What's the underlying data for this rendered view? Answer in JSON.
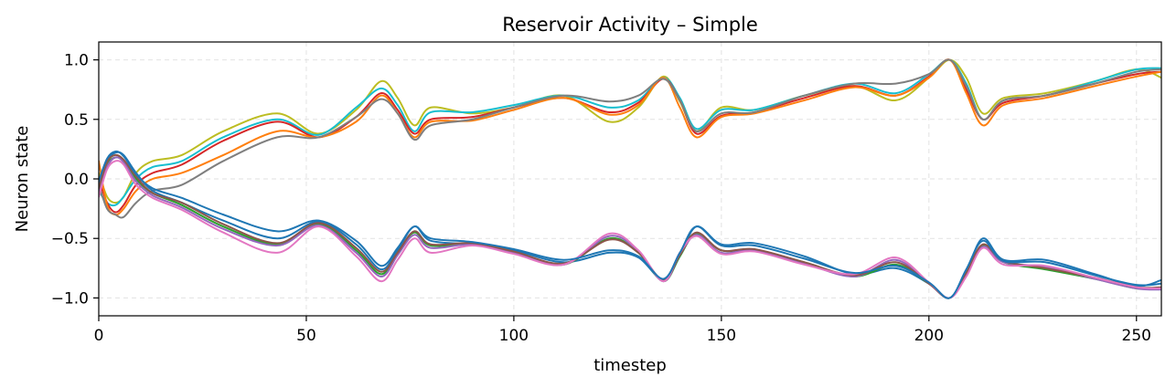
{
  "chart_data": {
    "type": "line",
    "title": "Reservoir Activity – Simple",
    "xlabel": "timestep",
    "ylabel": "Neuron state",
    "xlim": [
      0,
      256
    ],
    "ylim": [
      -1.15,
      1.15
    ],
    "x_ticks": [
      0,
      50,
      100,
      150,
      200,
      250
    ],
    "x_tick_labels": [
      "0",
      "50",
      "100",
      "150",
      "200",
      "250"
    ],
    "y_ticks": [
      1.0,
      0.5,
      0.0,
      -0.5,
      -1.0
    ],
    "y_tick_labels": [
      "1.0",
      "0.5",
      "0.0",
      "−0.5",
      "−1.0"
    ],
    "grid": true,
    "legend": "none",
    "x": [
      0,
      2,
      4,
      6,
      9,
      13,
      20,
      30,
      43,
      53,
      62,
      68,
      72,
      76,
      80,
      90,
      100,
      112,
      123,
      130,
      136,
      140,
      144,
      150,
      158,
      170,
      182,
      192,
      200,
      205,
      209,
      213,
      218,
      228,
      240,
      250,
      256
    ],
    "series": [
      {
        "color": "#bcbd22",
        "values": [
          0.05,
          -0.15,
          -0.2,
          -0.15,
          0.05,
          0.15,
          0.2,
          0.4,
          0.55,
          0.38,
          0.58,
          0.82,
          0.68,
          0.45,
          0.6,
          0.55,
          0.6,
          0.7,
          0.48,
          0.6,
          0.86,
          0.65,
          0.4,
          0.6,
          0.58,
          0.7,
          0.78,
          0.66,
          0.85,
          1.0,
          0.85,
          0.55,
          0.68,
          0.72,
          0.82,
          0.92,
          0.85
        ]
      },
      {
        "color": "#17becf",
        "values": [
          -0.1,
          -0.2,
          -0.22,
          -0.15,
          0.0,
          0.1,
          0.15,
          0.35,
          0.5,
          0.37,
          0.6,
          0.76,
          0.62,
          0.4,
          0.56,
          0.56,
          0.62,
          0.7,
          0.6,
          0.66,
          0.85,
          0.68,
          0.42,
          0.58,
          0.58,
          0.7,
          0.8,
          0.72,
          0.88,
          1.0,
          0.8,
          0.5,
          0.66,
          0.7,
          0.82,
          0.92,
          0.93
        ]
      },
      {
        "color": "#d62728",
        "values": [
          0.0,
          -0.2,
          -0.28,
          -0.22,
          -0.05,
          0.05,
          0.12,
          0.32,
          0.48,
          0.35,
          0.52,
          0.72,
          0.58,
          0.38,
          0.5,
          0.52,
          0.6,
          0.68,
          0.56,
          0.64,
          0.84,
          0.66,
          0.38,
          0.53,
          0.56,
          0.68,
          0.78,
          0.7,
          0.86,
          1.0,
          0.75,
          0.5,
          0.64,
          0.7,
          0.8,
          0.88,
          0.9
        ]
      },
      {
        "color": "#ff7f0e",
        "values": [
          0.15,
          -0.22,
          -0.3,
          -0.25,
          -0.1,
          0.0,
          0.05,
          0.2,
          0.4,
          0.35,
          0.48,
          0.7,
          0.55,
          0.35,
          0.48,
          0.49,
          0.58,
          0.68,
          0.54,
          0.62,
          0.85,
          0.6,
          0.35,
          0.52,
          0.55,
          0.66,
          0.77,
          0.7,
          0.85,
          1.0,
          0.72,
          0.45,
          0.62,
          0.68,
          0.78,
          0.86,
          0.9
        ]
      },
      {
        "color": "#7f7f7f",
        "values": [
          -0.05,
          -0.25,
          -0.3,
          -0.32,
          -0.2,
          -0.1,
          -0.05,
          0.15,
          0.35,
          0.35,
          0.52,
          0.67,
          0.55,
          0.33,
          0.45,
          0.5,
          0.6,
          0.7,
          0.65,
          0.7,
          0.84,
          0.66,
          0.4,
          0.55,
          0.56,
          0.7,
          0.8,
          0.8,
          0.88,
          1.0,
          0.78,
          0.5,
          0.66,
          0.7,
          0.8,
          0.9,
          0.92
        ]
      },
      {
        "color": "#1f77b4",
        "values": [
          -0.05,
          0.15,
          0.22,
          0.2,
          0.05,
          -0.1,
          -0.2,
          -0.35,
          -0.5,
          -0.36,
          -0.55,
          -0.76,
          -0.6,
          -0.4,
          -0.52,
          -0.55,
          -0.6,
          -0.7,
          -0.62,
          -0.66,
          -0.85,
          -0.65,
          -0.4,
          -0.55,
          -0.54,
          -0.65,
          -0.8,
          -0.75,
          -0.88,
          -1.0,
          -0.78,
          -0.5,
          -0.68,
          -0.68,
          -0.8,
          -0.9,
          -0.85
        ]
      },
      {
        "color": "#2ca02c",
        "values": [
          -0.1,
          0.12,
          0.18,
          0.15,
          0.0,
          -0.12,
          -0.22,
          -0.4,
          -0.55,
          -0.38,
          -0.6,
          -0.8,
          -0.62,
          -0.45,
          -0.56,
          -0.55,
          -0.62,
          -0.72,
          -0.5,
          -0.62,
          -0.86,
          -0.65,
          -0.46,
          -0.6,
          -0.6,
          -0.7,
          -0.82,
          -0.72,
          -0.88,
          -1.0,
          -0.8,
          -0.56,
          -0.7,
          -0.76,
          -0.84,
          -0.92,
          -0.92
        ]
      },
      {
        "color": "#9467bd",
        "values": [
          -0.12,
          0.1,
          0.18,
          0.14,
          -0.02,
          -0.14,
          -0.24,
          -0.42,
          -0.56,
          -0.39,
          -0.62,
          -0.82,
          -0.64,
          -0.47,
          -0.58,
          -0.55,
          -0.62,
          -0.72,
          -0.48,
          -0.61,
          -0.86,
          -0.64,
          -0.47,
          -0.62,
          -0.6,
          -0.71,
          -0.82,
          -0.68,
          -0.88,
          -1.0,
          -0.81,
          -0.57,
          -0.7,
          -0.74,
          -0.84,
          -0.92,
          -0.93
        ]
      },
      {
        "color": "#8c564b",
        "values": [
          -0.08,
          0.14,
          0.2,
          0.16,
          0.02,
          -0.12,
          -0.2,
          -0.38,
          -0.54,
          -0.37,
          -0.58,
          -0.78,
          -0.62,
          -0.44,
          -0.55,
          -0.54,
          -0.61,
          -0.71,
          -0.51,
          -0.62,
          -0.85,
          -0.64,
          -0.45,
          -0.6,
          -0.59,
          -0.7,
          -0.81,
          -0.7,
          -0.88,
          -1.0,
          -0.79,
          -0.55,
          -0.69,
          -0.75,
          -0.83,
          -0.91,
          -0.91
        ]
      },
      {
        "color": "#e377c2",
        "values": [
          -0.15,
          0.08,
          0.15,
          0.12,
          -0.05,
          -0.16,
          -0.26,
          -0.45,
          -0.62,
          -0.4,
          -0.65,
          -0.86,
          -0.68,
          -0.5,
          -0.62,
          -0.56,
          -0.63,
          -0.72,
          -0.46,
          -0.6,
          -0.86,
          -0.62,
          -0.48,
          -0.63,
          -0.61,
          -0.72,
          -0.8,
          -0.66,
          -0.87,
          -1.0,
          -0.82,
          -0.58,
          -0.72,
          -0.73,
          -0.83,
          -0.91,
          -0.92
        ]
      },
      {
        "color": "#1f77b4",
        "values": [
          -0.02,
          0.17,
          0.23,
          0.19,
          0.04,
          -0.08,
          -0.16,
          -0.3,
          -0.44,
          -0.35,
          -0.52,
          -0.73,
          -0.58,
          -0.4,
          -0.5,
          -0.53,
          -0.59,
          -0.68,
          -0.6,
          -0.65,
          -0.84,
          -0.62,
          -0.4,
          -0.56,
          -0.56,
          -0.67,
          -0.79,
          -0.73,
          -0.87,
          -1.0,
          -0.76,
          -0.52,
          -0.69,
          -0.7,
          -0.81,
          -0.89,
          -0.88
        ]
      }
    ]
  }
}
